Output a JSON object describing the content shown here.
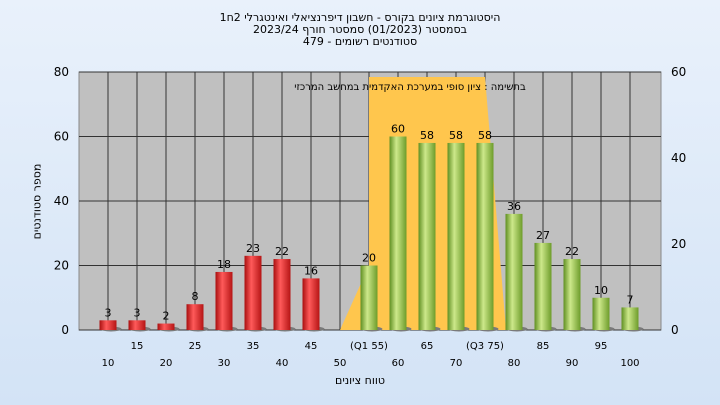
{
  "chart_data": {
    "type": "bar",
    "title": "היסטוגרמת ציונים בקורס - חשבון דיפרנציאלי ואינטגרלי 2ח1",
    "subtitle_1": "בסמסטר  (01/2023)  סמסטר חורף  2023/24",
    "subtitle_2": "סטודנטים רשומים - 479",
    "xlabel": "טווח ציונים",
    "ylabel": "מספר סטודנטים",
    "annotation": "בתשימה : ציון סופי במערכת האקדמית במחשב המרכזי",
    "ylim": [
      0,
      80
    ],
    "yticks_left": [
      0,
      20,
      40,
      60,
      80
    ],
    "ylim_right": [
      0,
      60
    ],
    "yticks_right": [
      0,
      20,
      40,
      60
    ],
    "bar_category_labels": [
      "15",
      "25",
      "35",
      "45",
      "(Q1 55)",
      "65",
      "(Q3 75)",
      "85",
      "95"
    ],
    "tick_labels_lower": [
      "10",
      "20",
      "30",
      "40",
      "50",
      "60",
      "70",
      "80",
      "90",
      "100"
    ],
    "categories": [
      "10",
      "15",
      "20",
      "25",
      "30",
      "35",
      "40",
      "45",
      "50",
      "55",
      "60",
      "65",
      "70",
      "75",
      "80",
      "85",
      "90",
      "95",
      "100"
    ],
    "values": [
      3,
      3,
      2,
      8,
      18,
      23,
      22,
      16,
      null,
      20,
      60,
      58,
      58,
      58,
      36,
      27,
      22,
      10,
      7
    ],
    "fail_color": "#e02020",
    "pass_color": "#8fc040",
    "band_color": "#ffc64d",
    "grid": true
  }
}
